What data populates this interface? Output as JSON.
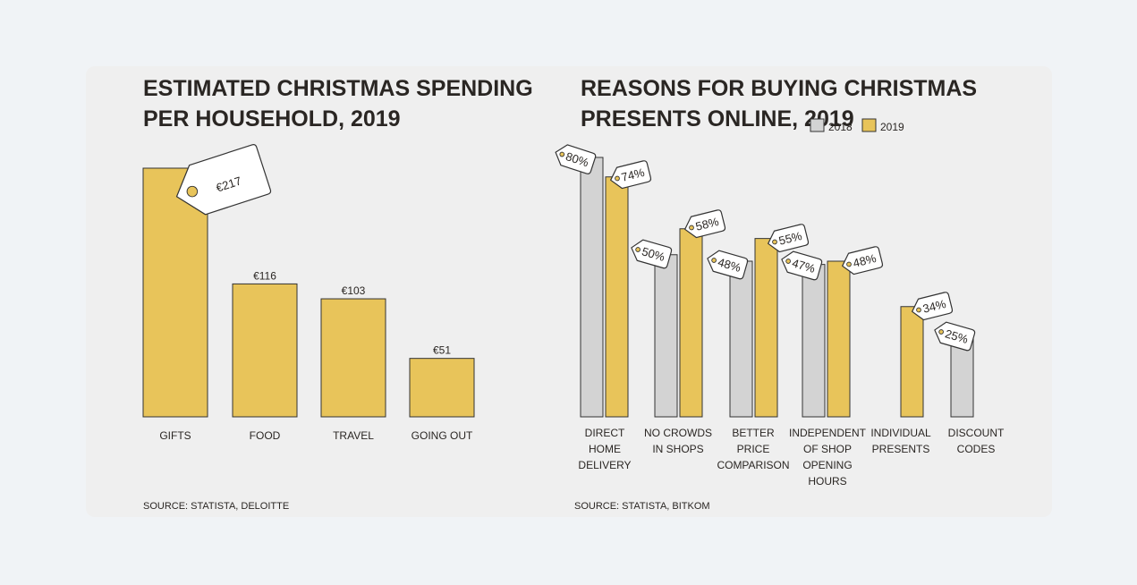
{
  "chart_data": [
    {
      "type": "bar",
      "title": [
        "ESTIMATED CHRISTMAS SPENDING",
        "PER HOUSEHOLD, 2019"
      ],
      "categories": [
        "GIFTS",
        "FOOD",
        "TRAVEL",
        "GOING OUT"
      ],
      "values": [
        217,
        116,
        103,
        51
      ],
      "value_labels": [
        "€217",
        "€116",
        "€103",
        "€51"
      ],
      "highlight_label": "€217",
      "source": "SOURCE: STATISTA, DELOITTE",
      "colors": {
        "bar": "#e8c45a",
        "stroke": "#333333"
      }
    },
    {
      "type": "bar",
      "title": [
        "REASONS FOR BUYING CHRISTMAS",
        "PRESENTS ONLINE, 2019"
      ],
      "legend": [
        {
          "name": "2018",
          "color": "#d3d3d3"
        },
        {
          "name": "2019",
          "color": "#e8c45a"
        }
      ],
      "categories": [
        [
          "DIRECT",
          "HOME",
          "DELIVERY"
        ],
        [
          "NO CROWDS",
          "IN SHOPS"
        ],
        [
          "BETTER",
          "PRICE",
          "COMPARISON"
        ],
        [
          "INDEPENDENT",
          "OF SHOP",
          "OPENING",
          "HOURS"
        ],
        [
          "INDIVIDUAL",
          "PRESENTS"
        ],
        [
          "DISCOUNT",
          "CODES"
        ]
      ],
      "series": [
        {
          "name": "2018",
          "values": [
            80,
            50,
            48,
            47,
            null,
            25
          ],
          "labels": [
            "80%",
            "50%",
            "48%",
            "47%",
            "",
            "25%"
          ]
        },
        {
          "name": "2019",
          "values": [
            74,
            58,
            55,
            48,
            34,
            null
          ],
          "labels": [
            "74%",
            "58%",
            "55%",
            "48%",
            "34%",
            ""
          ]
        }
      ],
      "source": "SOURCE: STATISTA, BITKOM"
    }
  ]
}
